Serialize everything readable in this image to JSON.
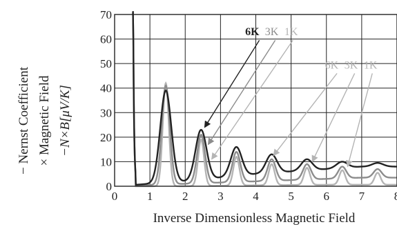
{
  "chart_data": {
    "type": "line",
    "title": "",
    "xlabel": "Inverse Dimensionless Magnetic Field",
    "ylabel_lines": [
      "− Nernst Coefficient",
      "× Magnetic Field",
      "−N×B[μV/K]"
    ],
    "xlim": [
      0,
      8
    ],
    "ylim": [
      0,
      70
    ],
    "xticks": [
      "0",
      "1",
      "2",
      "3",
      "4",
      "5",
      "6",
      "7",
      "8"
    ],
    "yticks": [
      "0",
      "10",
      "20",
      "30",
      "40",
      "50",
      "60",
      "70"
    ],
    "grid": true,
    "legend": "none",
    "colors": {
      "dark": "#222222",
      "gray": "#8c8c8c",
      "light": "#b4b4b4"
    },
    "peaks": [
      {
        "x": 1.45,
        "values": {
          "6K": 39,
          "3K": 41,
          "1K": 42
        }
      },
      {
        "x": 2.45,
        "values": {
          "6K": 23,
          "3K": 21,
          "1K": 19
        }
      },
      {
        "x": 3.45,
        "values": {
          "6K": 16,
          "3K": 14,
          "1K": 12
        }
      },
      {
        "x": 4.45,
        "values": {
          "6K": 13,
          "3K": 11,
          "1K": 9
        }
      },
      {
        "x": 5.45,
        "values": {
          "6K": 11,
          "3K": 9,
          "1K": 7.5
        }
      },
      {
        "x": 6.45,
        "values": {
          "6K": 10,
          "3K": 8,
          "1K": 6.5
        }
      },
      {
        "x": 7.45,
        "values": {
          "6K": 9.5,
          "3K": 7,
          "1K": 5.5
        }
      }
    ],
    "series": [
      {
        "name": "6K",
        "style": "dark",
        "baseline": [
          0,
          1,
          2,
          3.5,
          5,
          6,
          7,
          8
        ],
        "width": 0.22
      },
      {
        "name": "3K",
        "style": "gray",
        "baseline": [
          0,
          0.5,
          1,
          1.5,
          2,
          2.5,
          3,
          3.5
        ],
        "width": 0.16
      },
      {
        "name": "1K",
        "style": "light",
        "baseline": [
          0,
          0,
          0,
          0.2,
          0.4,
          0.5,
          0.6,
          0.6
        ],
        "width": 0.12
      }
    ],
    "annotations": [
      {
        "group": "a",
        "labels": [
          {
            "text": "6K",
            "style": "dark",
            "x": 3.9,
            "y": 61.5
          },
          {
            "text": "3K",
            "style": "gray",
            "x": 4.45,
            "y": 61.5
          },
          {
            "text": "1K",
            "style": "light",
            "x": 5.0,
            "y": 61.5
          }
        ],
        "arrows": [
          {
            "style": "dark",
            "from": [
              4.1,
              59.5
            ],
            "to": [
              2.55,
              24
            ]
          },
          {
            "style": "gray",
            "from": [
              4.55,
              59.5
            ],
            "to": [
              2.65,
              17
            ]
          },
          {
            "style": "light",
            "from": [
              5.05,
              59.5
            ],
            "to": [
              2.75,
              11
            ]
          }
        ]
      },
      {
        "group": "b",
        "labels": [
          {
            "text": "6K",
            "style": "light",
            "x": 6.15,
            "y": 48
          },
          {
            "text": "3K",
            "style": "light",
            "x": 6.7,
            "y": 48
          },
          {
            "text": "1K",
            "style": "light",
            "x": 7.25,
            "y": 48
          }
        ],
        "arrows": [
          {
            "style": "light",
            "from": [
              6.3,
              46
            ],
            "to": [
              4.5,
              12.5
            ]
          },
          {
            "style": "light",
            "from": [
              6.8,
              46
            ],
            "to": [
              5.6,
              10
            ]
          },
          {
            "style": "light",
            "from": [
              7.3,
              46
            ],
            "to": [
              6.6,
              8
            ]
          }
        ]
      }
    ]
  }
}
